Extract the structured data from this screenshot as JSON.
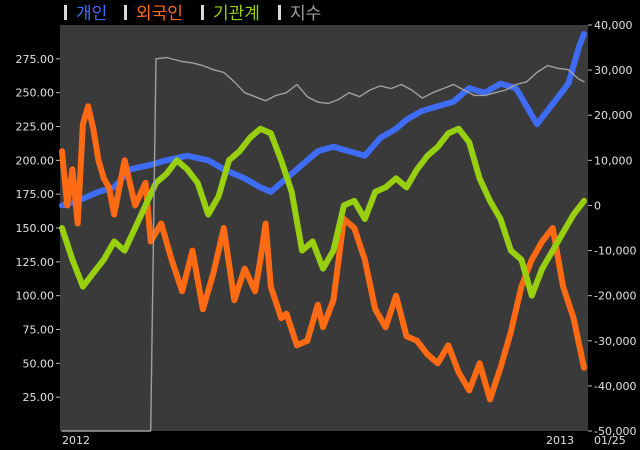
{
  "chart_data": {
    "type": "line",
    "legend_position": "top-left",
    "background": "#000000",
    "plot_background": "#3a3a3a",
    "series": [
      {
        "name": "개인",
        "axis": "right",
        "color": "#3f6cf5",
        "x": [
          0,
          0.03,
          0.07,
          0.1,
          0.13,
          0.17,
          0.2,
          0.24,
          0.28,
          0.31,
          0.35,
          0.38,
          0.4,
          0.43,
          0.46,
          0.49,
          0.52,
          0.55,
          0.58,
          0.61,
          0.64,
          0.66,
          0.69,
          0.72,
          0.75,
          0.78,
          0.81,
          0.84,
          0.87,
          0.89,
          0.91,
          0.93,
          0.95,
          0.97,
          0.99,
          1.0
        ],
        "y": [
          0,
          1,
          3,
          4,
          8,
          9,
          10,
          11,
          10,
          8,
          6,
          4,
          3,
          6,
          9,
          12,
          13,
          12,
          11,
          15,
          17,
          19,
          21,
          22,
          23,
          26,
          25,
          27,
          26,
          22,
          18,
          21,
          24,
          27,
          35,
          38
        ]
      },
      {
        "name": "외국인",
        "axis": "right",
        "color": "#ff6a13",
        "x": [
          0,
          0.01,
          0.02,
          0.03,
          0.04,
          0.05,
          0.06,
          0.07,
          0.08,
          0.09,
          0.1,
          0.12,
          0.14,
          0.16,
          0.17,
          0.19,
          0.21,
          0.23,
          0.25,
          0.27,
          0.29,
          0.31,
          0.33,
          0.35,
          0.37,
          0.38,
          0.39,
          0.4,
          0.42,
          0.43,
          0.45,
          0.47,
          0.49,
          0.5,
          0.52,
          0.54,
          0.56,
          0.58,
          0.6,
          0.62,
          0.64,
          0.66,
          0.68,
          0.7,
          0.72,
          0.74,
          0.76,
          0.78,
          0.8,
          0.82,
          0.84,
          0.86,
          0.88,
          0.9,
          0.92,
          0.94,
          0.96,
          0.98,
          1.0
        ],
        "y": [
          12,
          0,
          8,
          -4,
          18,
          22,
          17,
          10,
          6,
          4,
          -2,
          10,
          0,
          5,
          -8,
          -4,
          -12,
          -19,
          -10,
          -23,
          -15,
          -5,
          -21,
          -14,
          -19,
          -12,
          -4,
          -18,
          -25,
          -24,
          -31,
          -30,
          -22,
          -27,
          -21,
          -3,
          -5,
          -12,
          -23,
          -27,
          -20,
          -29,
          -30,
          -33,
          -35,
          -31,
          -37,
          -41,
          -35,
          -43,
          -36,
          -28,
          -18,
          -12,
          -8,
          -5,
          -18,
          -25,
          -36
        ]
      },
      {
        "name": "기관계",
        "axis": "right",
        "color": "#98d010",
        "x": [
          0,
          0.02,
          0.04,
          0.06,
          0.08,
          0.1,
          0.12,
          0.14,
          0.16,
          0.18,
          0.2,
          0.22,
          0.24,
          0.26,
          0.28,
          0.3,
          0.32,
          0.34,
          0.36,
          0.38,
          0.4,
          0.42,
          0.44,
          0.46,
          0.48,
          0.5,
          0.52,
          0.54,
          0.56,
          0.58,
          0.6,
          0.62,
          0.64,
          0.66,
          0.68,
          0.7,
          0.72,
          0.74,
          0.76,
          0.78,
          0.8,
          0.82,
          0.84,
          0.86,
          0.88,
          0.9,
          0.92,
          0.94,
          0.96,
          0.98,
          1.0
        ],
        "y": [
          -5,
          -12,
          -18,
          -15,
          -12,
          -8,
          -10,
          -5,
          0,
          5,
          7,
          10,
          8,
          5,
          -2,
          2,
          10,
          12,
          15,
          17,
          16,
          10,
          3,
          -10,
          -8,
          -14,
          -10,
          0,
          1,
          -3,
          3,
          4,
          6,
          4,
          8,
          11,
          13,
          16,
          17,
          14,
          6,
          1,
          -3,
          -10,
          -12,
          -20,
          -14,
          -10,
          -6,
          -2,
          1
        ]
      },
      {
        "name": "지수",
        "axis": "left",
        "color": "#a0a0a0",
        "x": [
          0,
          0.1,
          0.15,
          0.17,
          0.18,
          0.2,
          0.23,
          0.25,
          0.27,
          0.29,
          0.31,
          0.33,
          0.35,
          0.37,
          0.39,
          0.41,
          0.43,
          0.45,
          0.47,
          0.49,
          0.51,
          0.53,
          0.55,
          0.57,
          0.59,
          0.61,
          0.63,
          0.65,
          0.67,
          0.69,
          0.71,
          0.73,
          0.75,
          0.77,
          0.79,
          0.81,
          0.83,
          0.85,
          0.87,
          0.89,
          0.91,
          0.93,
          0.95,
          0.97,
          0.99,
          1.0
        ],
        "y": [
          0,
          0,
          0,
          0,
          275,
          276,
          273,
          272,
          270,
          267,
          265,
          258,
          250,
          247,
          244,
          248,
          250,
          256,
          247,
          243,
          242,
          245,
          250,
          247,
          252,
          255,
          253,
          256,
          252,
          246,
          250,
          253,
          256,
          252,
          248,
          248,
          250,
          252,
          256,
          258,
          265,
          270,
          268,
          267,
          260,
          258
        ]
      }
    ],
    "y_left": {
      "min": 0,
      "max": 300,
      "ticks": [
        "275.00",
        "250.00",
        "225.00",
        "200.00",
        "175.00",
        "150.00",
        "125.00",
        "100.00",
        "75.00",
        "50.00",
        "25.00"
      ]
    },
    "y_right": {
      "min": -50000,
      "max": 40000,
      "ticks": [
        "40,000",
        "30,000",
        "20,000",
        "10,000",
        "0",
        "-10,000",
        "-20,000",
        "-30,000",
        "-40,000",
        "-50,000"
      ]
    },
    "x_ticks": [
      "2012",
      "2013"
    ],
    "corner_label": "01/25"
  }
}
